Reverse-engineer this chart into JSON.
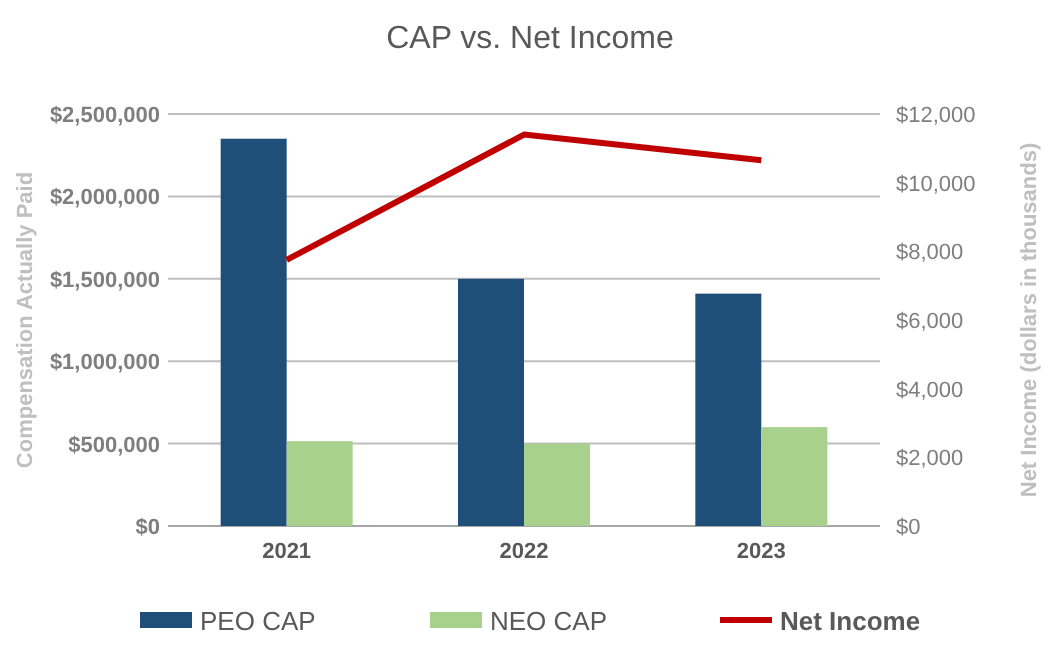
{
  "chart_data": {
    "type": "bar",
    "title": "CAP vs. Net Income",
    "ylabel": "Compensation Actually Paid",
    "y2label": "Net Income (dollars in thousands)",
    "categories": [
      "2021",
      "2022",
      "2023"
    ],
    "series": [
      {
        "name": "PEO CAP",
        "color": "#1f4e79",
        "values": [
          2350000,
          1500000,
          1410000
        ]
      },
      {
        "name": "NEO CAP",
        "color": "#a9d18e",
        "values": [
          515000,
          500000,
          600000
        ]
      },
      {
        "name": "Net Income",
        "type": "line",
        "axis": "y2",
        "color": "#c00000",
        "values": [
          7750,
          11400,
          10650
        ]
      }
    ],
    "ylim": [
      0,
      2500000
    ],
    "yticks": [
      {
        "value": 0,
        "label": "$0"
      },
      {
        "value": 500000,
        "label": "$500,000"
      },
      {
        "value": 1000000,
        "label": "$1,000,000"
      },
      {
        "value": 1500000,
        "label": "$1,500,000"
      },
      {
        "value": 2000000,
        "label": "$2,000,000"
      },
      {
        "value": 2500000,
        "label": "$2,500,000"
      }
    ],
    "y2lim": [
      0,
      12000
    ],
    "y2ticks": [
      {
        "value": 0,
        "label": "$0"
      },
      {
        "value": 2000,
        "label": "$2,000"
      },
      {
        "value": 4000,
        "label": "$4,000"
      },
      {
        "value": 6000,
        "label": "$6,000"
      },
      {
        "value": 8000,
        "label": "$8,000"
      },
      {
        "value": 10000,
        "label": "$10,000"
      },
      {
        "value": 12000,
        "label": "$12,000"
      }
    ],
    "grid": "y",
    "legend": "bottom"
  }
}
